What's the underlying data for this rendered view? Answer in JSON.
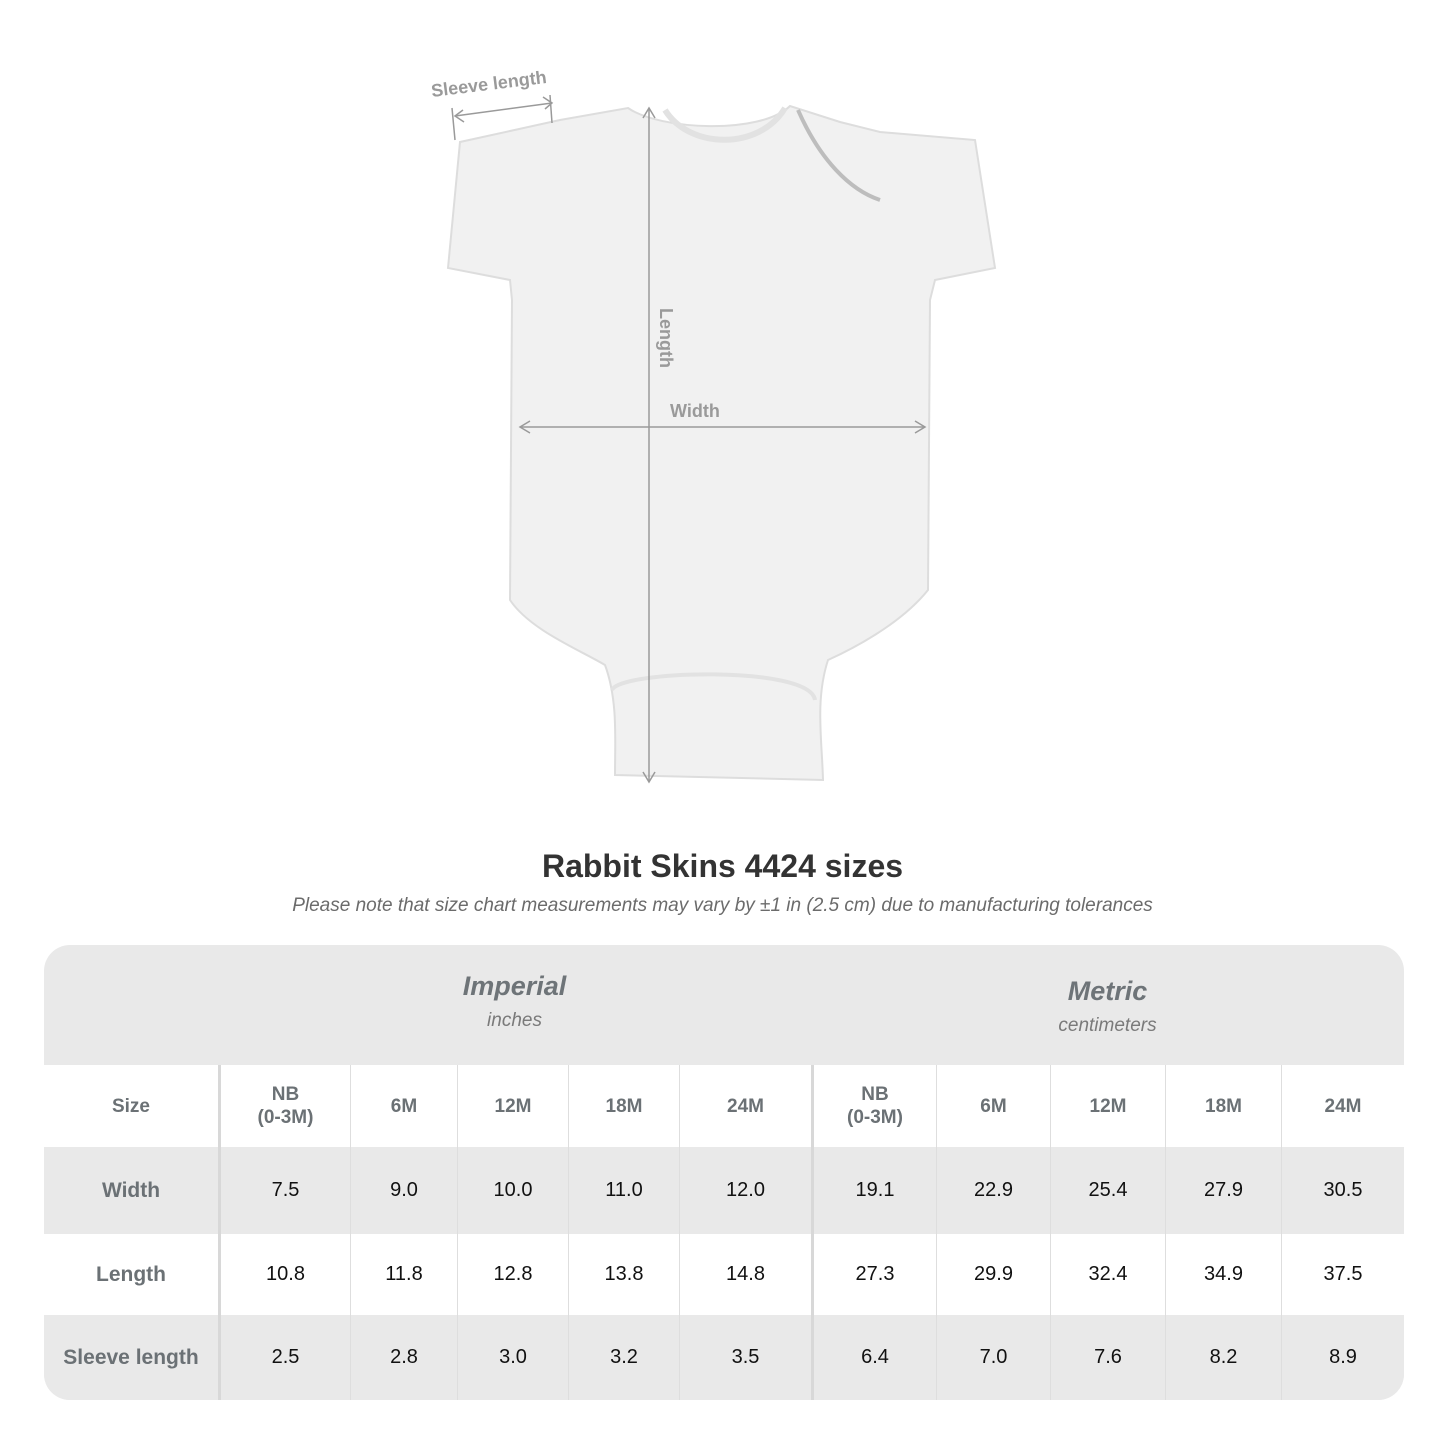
{
  "diagram": {
    "labels": {
      "sleeve": "Sleeve length",
      "length": "Length",
      "width": "Width"
    },
    "line_color": "#9a9a9a"
  },
  "title": "Rabbit Skins 4424 sizes",
  "note": "Please note that size chart measurements may vary by ±1 in (2.5 cm) due to manufacturing tolerances",
  "table": {
    "imperial": {
      "name": "Imperial",
      "unit": "inches"
    },
    "metric": {
      "name": "Metric",
      "unit": "centimeters"
    },
    "size_label": "Size",
    "sizes": [
      [
        "NB",
        "(0-3M)"
      ],
      [
        "6M"
      ],
      [
        "12M"
      ],
      [
        "18M"
      ],
      [
        "24M"
      ]
    ],
    "rows": [
      {
        "label": "Width",
        "imperial": [
          "7.5",
          "9.0",
          "10.0",
          "11.0",
          "12.0"
        ],
        "metric": [
          "19.1",
          "22.9",
          "25.4",
          "27.9",
          "30.5"
        ]
      },
      {
        "label": "Length",
        "imperial": [
          "10.8",
          "11.8",
          "12.8",
          "13.8",
          "14.8"
        ],
        "metric": [
          "27.3",
          "29.9",
          "32.4",
          "34.9",
          "37.5"
        ]
      },
      {
        "label": "Sleeve length",
        "imperial": [
          "2.5",
          "2.8",
          "3.0",
          "3.2",
          "3.5"
        ],
        "metric": [
          "6.4",
          "7.0",
          "7.6",
          "8.2",
          "8.9"
        ]
      }
    ],
    "colors": {
      "band": "#e9e9e9",
      "header_text": "#6b7175"
    }
  }
}
